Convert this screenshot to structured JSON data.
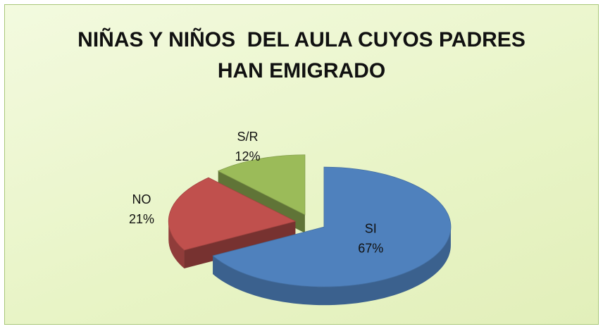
{
  "chart_data": {
    "type": "pie",
    "title": [
      "NIÑAS Y NIÑOS  DEL AULA CUYOS PADRES",
      "HAN EMIGRADO"
    ],
    "categories": [
      "SI",
      "NO",
      "S/R"
    ],
    "values": [
      67,
      21,
      12
    ],
    "value_labels": [
      "67%",
      "21%",
      "12%"
    ],
    "colors": [
      "#4f81bd",
      "#c0504d",
      "#9bbb59"
    ]
  }
}
